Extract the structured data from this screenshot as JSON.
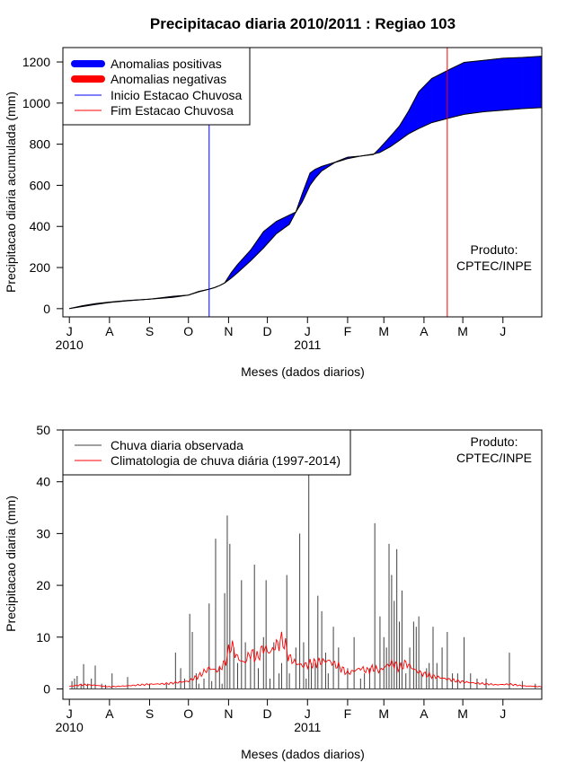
{
  "page_title": "Precipitacao diaria 2010/2011 : Regiao 103",
  "colors": {
    "positive": "#0000ff",
    "negative": "#ff0000",
    "observed": "#404040",
    "climatology": "#ff0000",
    "onset": "#0000ff",
    "end": "#ff0000"
  },
  "chart_data": [
    {
      "type": "area",
      "title": "Precipitacao diaria 2010/2011 : Regiao 103",
      "xlabel": "Meses (dados diarios)",
      "ylabel": "Precipitacao diaria acumulada (mm)",
      "ylim": [
        -40,
        1270
      ],
      "yticks": [
        0,
        200,
        400,
        600,
        800,
        1000,
        1200
      ],
      "xlim_days": [
        -5,
        365
      ],
      "month_ticks": [
        {
          "label": "J",
          "day": 0
        },
        {
          "label": "A",
          "day": 31
        },
        {
          "label": "S",
          "day": 62
        },
        {
          "label": "O",
          "day": 92
        },
        {
          "label": "N",
          "day": 123
        },
        {
          "label": "D",
          "day": 153
        },
        {
          "label": "J",
          "day": 184
        },
        {
          "label": "F",
          "day": 215
        },
        {
          "label": "M",
          "day": 243
        },
        {
          "label": "A",
          "day": 274
        },
        {
          "label": "M",
          "day": 304
        },
        {
          "label": "J",
          "day": 335
        }
      ],
      "year_labels": [
        {
          "label": "2010",
          "day": 0
        },
        {
          "label": "2011",
          "day": 184
        }
      ],
      "legend": [
        "Anomalias positivas",
        "Anomalias negativas",
        "Inicio Estacao Chuvosa",
        "Fim Estacao Chuvosa"
      ],
      "annotation": [
        "Produto:",
        "CPTEC/INPE"
      ],
      "onset_day": 108,
      "end_day": 292,
      "series": [
        {
          "name": "Observada acumulada",
          "days": [
            0,
            10,
            20,
            31,
            45,
            62,
            70,
            80,
            92,
            100,
            108,
            112,
            116,
            120,
            125,
            130,
            140,
            150,
            160,
            170,
            175,
            180,
            186,
            190,
            195,
            205,
            215,
            225,
            235,
            240,
            248,
            255,
            262,
            270,
            280,
            295,
            305,
            320,
            335,
            350,
            365
          ],
          "values": [
            0,
            14,
            24,
            32,
            40,
            46,
            52,
            60,
            66,
            84,
            95,
            102,
            112,
            125,
            175,
            215,
            285,
            375,
            425,
            455,
            470,
            560,
            660,
            678,
            692,
            712,
            737,
            742,
            750,
            782,
            838,
            888,
            960,
            1055,
            1120,
            1168,
            1198,
            1208,
            1218,
            1222,
            1228
          ]
        },
        {
          "name": "Climatologia acumulada",
          "days": [
            0,
            10,
            20,
            31,
            45,
            62,
            70,
            80,
            92,
            100,
            108,
            112,
            116,
            120,
            125,
            130,
            140,
            150,
            160,
            170,
            175,
            180,
            186,
            190,
            195,
            205,
            215,
            225,
            235,
            240,
            248,
            255,
            262,
            270,
            280,
            295,
            305,
            320,
            335,
            350,
            365
          ],
          "values": [
            0,
            10,
            20,
            30,
            38,
            46,
            50,
            55,
            66,
            82,
            95,
            102,
            112,
            125,
            148,
            175,
            232,
            295,
            365,
            410,
            470,
            520,
            600,
            635,
            670,
            710,
            730,
            742,
            752,
            760,
            788,
            818,
            850,
            876,
            905,
            930,
            945,
            958,
            965,
            973,
            978
          ]
        }
      ]
    },
    {
      "type": "bar",
      "title": "",
      "xlabel": "Meses (dados diarios)",
      "ylabel": "Precipitacao diaria (mm)",
      "ylim": [
        -2,
        50
      ],
      "yticks": [
        0,
        10,
        20,
        30,
        40,
        50
      ],
      "xlim_days": [
        -5,
        365
      ],
      "month_ticks": [
        {
          "label": "J",
          "day": 0
        },
        {
          "label": "A",
          "day": 31
        },
        {
          "label": "S",
          "day": 62
        },
        {
          "label": "O",
          "day": 92
        },
        {
          "label": "N",
          "day": 123
        },
        {
          "label": "D",
          "day": 153
        },
        {
          "label": "J",
          "day": 184
        },
        {
          "label": "F",
          "day": 215
        },
        {
          "label": "M",
          "day": 243
        },
        {
          "label": "A",
          "day": 274
        },
        {
          "label": "M",
          "day": 304
        },
        {
          "label": "J",
          "day": 335
        }
      ],
      "year_labels": [
        {
          "label": "2010",
          "day": 0
        },
        {
          "label": "2011",
          "day": 184
        }
      ],
      "legend": [
        "Chuva diaria observada",
        "Climatologia de chuva diária (1997-2014)"
      ],
      "annotation": [
        "Produto:",
        "CPTEC/INPE"
      ],
      "series": [
        {
          "name": "Chuva diaria observada",
          "days": [
            2,
            4,
            6,
            9,
            11,
            14,
            17,
            20,
            25,
            28,
            33,
            45,
            62,
            75,
            82,
            86,
            89,
            93,
            95,
            98,
            100,
            104,
            108,
            110,
            113,
            116,
            118,
            120,
            122,
            124,
            127,
            130,
            133,
            136,
            140,
            143,
            146,
            150,
            152,
            155,
            158,
            162,
            164,
            168,
            170,
            175,
            178,
            181,
            183,
            185,
            187,
            190,
            192,
            195,
            198,
            200,
            204,
            208,
            215,
            220,
            225,
            228,
            232,
            236,
            240,
            243,
            245,
            247,
            249,
            251,
            253,
            255,
            257,
            260,
            263,
            266,
            268,
            270,
            272,
            276,
            278,
            281,
            284,
            288,
            292,
            296,
            300,
            305,
            310,
            315,
            322,
            340,
            350,
            360
          ],
          "values": [
            1.5,
            2,
            2.5,
            1,
            4.8,
            1,
            2,
            4.5,
            1,
            0.8,
            3,
            2.3,
            1,
            1,
            7,
            4,
            2,
            14.5,
            11,
            3,
            1,
            2,
            16.5,
            1.5,
            29,
            4.3,
            1,
            18.5,
            33.5,
            28,
            8,
            5,
            21,
            9,
            6,
            24,
            4,
            10,
            21,
            2,
            9,
            3,
            5,
            22,
            3,
            8,
            30,
            9,
            2,
            45,
            5,
            5,
            18,
            15,
            7,
            3,
            12,
            8,
            4,
            10,
            2,
            3,
            4,
            32,
            14,
            10,
            8,
            28,
            22,
            17,
            27,
            13,
            19,
            3,
            8,
            13,
            12,
            14,
            3,
            4,
            5,
            12,
            5,
            8,
            11,
            3,
            3,
            10,
            3,
            2,
            2,
            7,
            1.5,
            1
          ]
        },
        {
          "name": "Climatologia de chuva diária (1997-2014)",
          "days": [
            0,
            10,
            20,
            31,
            45,
            62,
            75,
            92,
            100,
            108,
            115,
            120,
            125,
            130,
            135,
            140,
            145,
            150,
            155,
            160,
            165,
            170,
            175,
            180,
            190,
            200,
            210,
            215,
            220,
            225,
            230,
            235,
            240,
            245,
            250,
            255,
            260,
            265,
            270,
            275,
            280,
            290,
            300,
            310,
            320,
            330,
            340,
            350,
            360,
            365
          ],
          "values": [
            0.5,
            0.8,
            0.7,
            0.4,
            0.6,
            0.9,
            1,
            1.5,
            2.5,
            4,
            3.5,
            5,
            8.5,
            6,
            5,
            7,
            6,
            8,
            7,
            8.5,
            9.5,
            6,
            5,
            4.5,
            5,
            5.5,
            4,
            3,
            3.5,
            4,
            3.5,
            4,
            3.5,
            4.5,
            5,
            4,
            5,
            4,
            3.2,
            2.8,
            2.5,
            2,
            1.5,
            1.2,
            1,
            0.8,
            0.9,
            0.6,
            0.5,
            0.4
          ]
        }
      ]
    }
  ]
}
